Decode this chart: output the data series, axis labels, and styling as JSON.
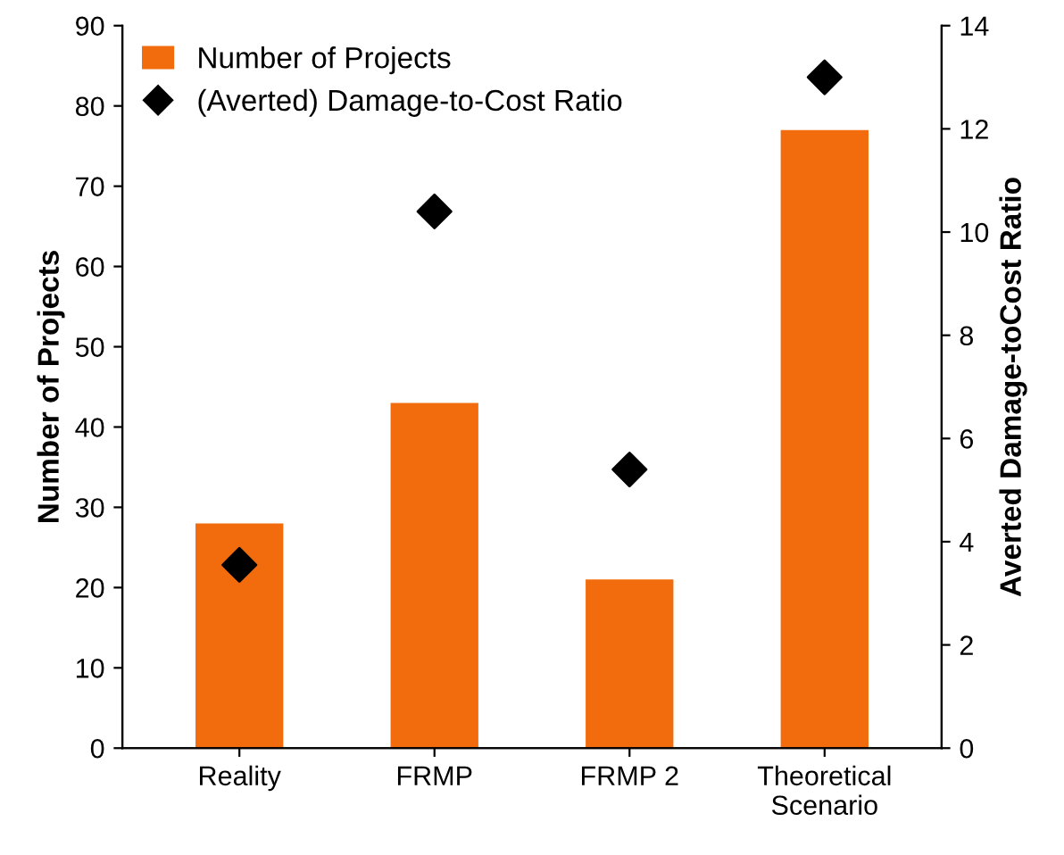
{
  "chart_data": {
    "type": "bar",
    "categories": [
      "Reality",
      "FRMP",
      "FRMP 2",
      "Theoretical\nScenario"
    ],
    "ylabel": "Number of Projects",
    "y2label": "Averted Damage-toCost Ratio",
    "series": [
      {
        "name": "Number of Projects",
        "color": "#f26c0d",
        "values": [
          28,
          43,
          21,
          77
        ]
      },
      {
        "name": "(Averted) Damage-to-Cost Ratio",
        "type": "scatter",
        "axis": "y2",
        "color": "#000000",
        "marker": "diamond",
        "values": [
          3.55,
          10.4,
          5.4,
          13.0
        ]
      }
    ],
    "ylim": [
      0,
      90
    ],
    "yticks": [
      0,
      10,
      20,
      30,
      40,
      50,
      60,
      70,
      80,
      90
    ],
    "y2lim": [
      0,
      14
    ],
    "y2ticks": [
      0,
      2,
      4,
      6,
      8,
      10,
      12,
      14
    ],
    "legend": "top left",
    "grid": false
  }
}
